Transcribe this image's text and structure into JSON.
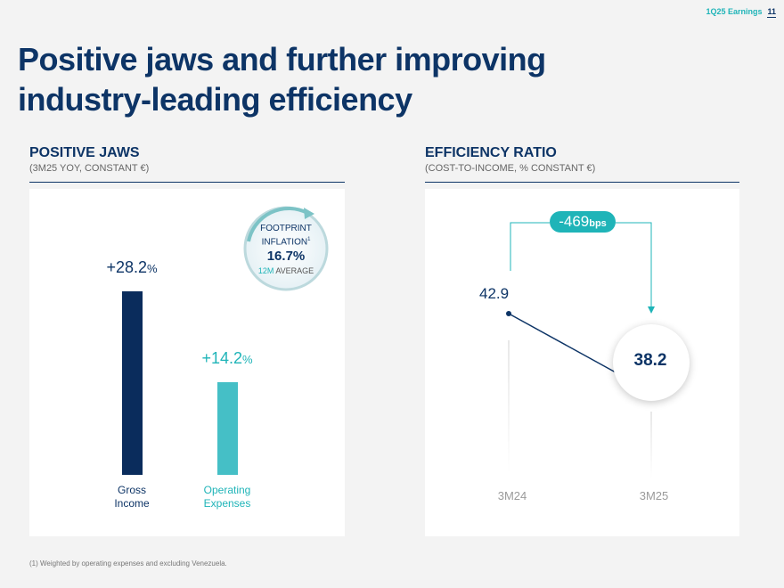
{
  "header": {
    "quarter": "1Q25 Earnings",
    "page": "11"
  },
  "title": {
    "regular": "Positive jaws and ",
    "bold_part": "further improving industry-leading efficiency"
  },
  "left": {
    "heading": "POSITIVE JAWS",
    "subheading": "(3M25 YOY, CONSTANT €)",
    "footprint": {
      "line1": "FOOTPRINT",
      "line2": "INFLATION",
      "superscript": "1",
      "value": "16.7%",
      "avg_accent": "12M",
      "avg_rest": " AVERAGE"
    }
  },
  "right": {
    "heading": "EFFICIENCY RATIO",
    "subheading": "(COST-TO-INCOME, % CONSTANT €)",
    "bps_value": "-469",
    "bps_unit": "bps"
  },
  "chart_data": [
    {
      "type": "bar",
      "title": "POSITIVE JAWS",
      "subtitle": "(3M25 YOY, CONSTANT €)",
      "categories": [
        "Gross Income",
        "Operating Expenses"
      ],
      "category_lines": [
        [
          "Gross",
          "Income"
        ],
        [
          "Operating",
          "Expenses"
        ]
      ],
      "values": [
        28.2,
        14.2
      ],
      "value_labels": [
        {
          "num": "+28.2",
          "unit": "%"
        },
        {
          "num": "+14.2",
          "unit": "%"
        }
      ],
      "colors": [
        "#0a2c5c",
        "#45bfc6"
      ],
      "label_colors": [
        "#0d3466",
        "#1fb4b8"
      ]
    },
    {
      "type": "line",
      "title": "EFFICIENCY RATIO",
      "subtitle": "(COST-TO-INCOME, % CONSTANT €)",
      "categories": [
        "3M24",
        "3M25"
      ],
      "values": [
        42.9,
        38.2
      ],
      "value_labels": [
        "42.9",
        "38.2"
      ],
      "change_label": "-469 bps",
      "colors": {
        "line": "#0d3466",
        "accent": "#1fb4b8"
      }
    }
  ]
}
